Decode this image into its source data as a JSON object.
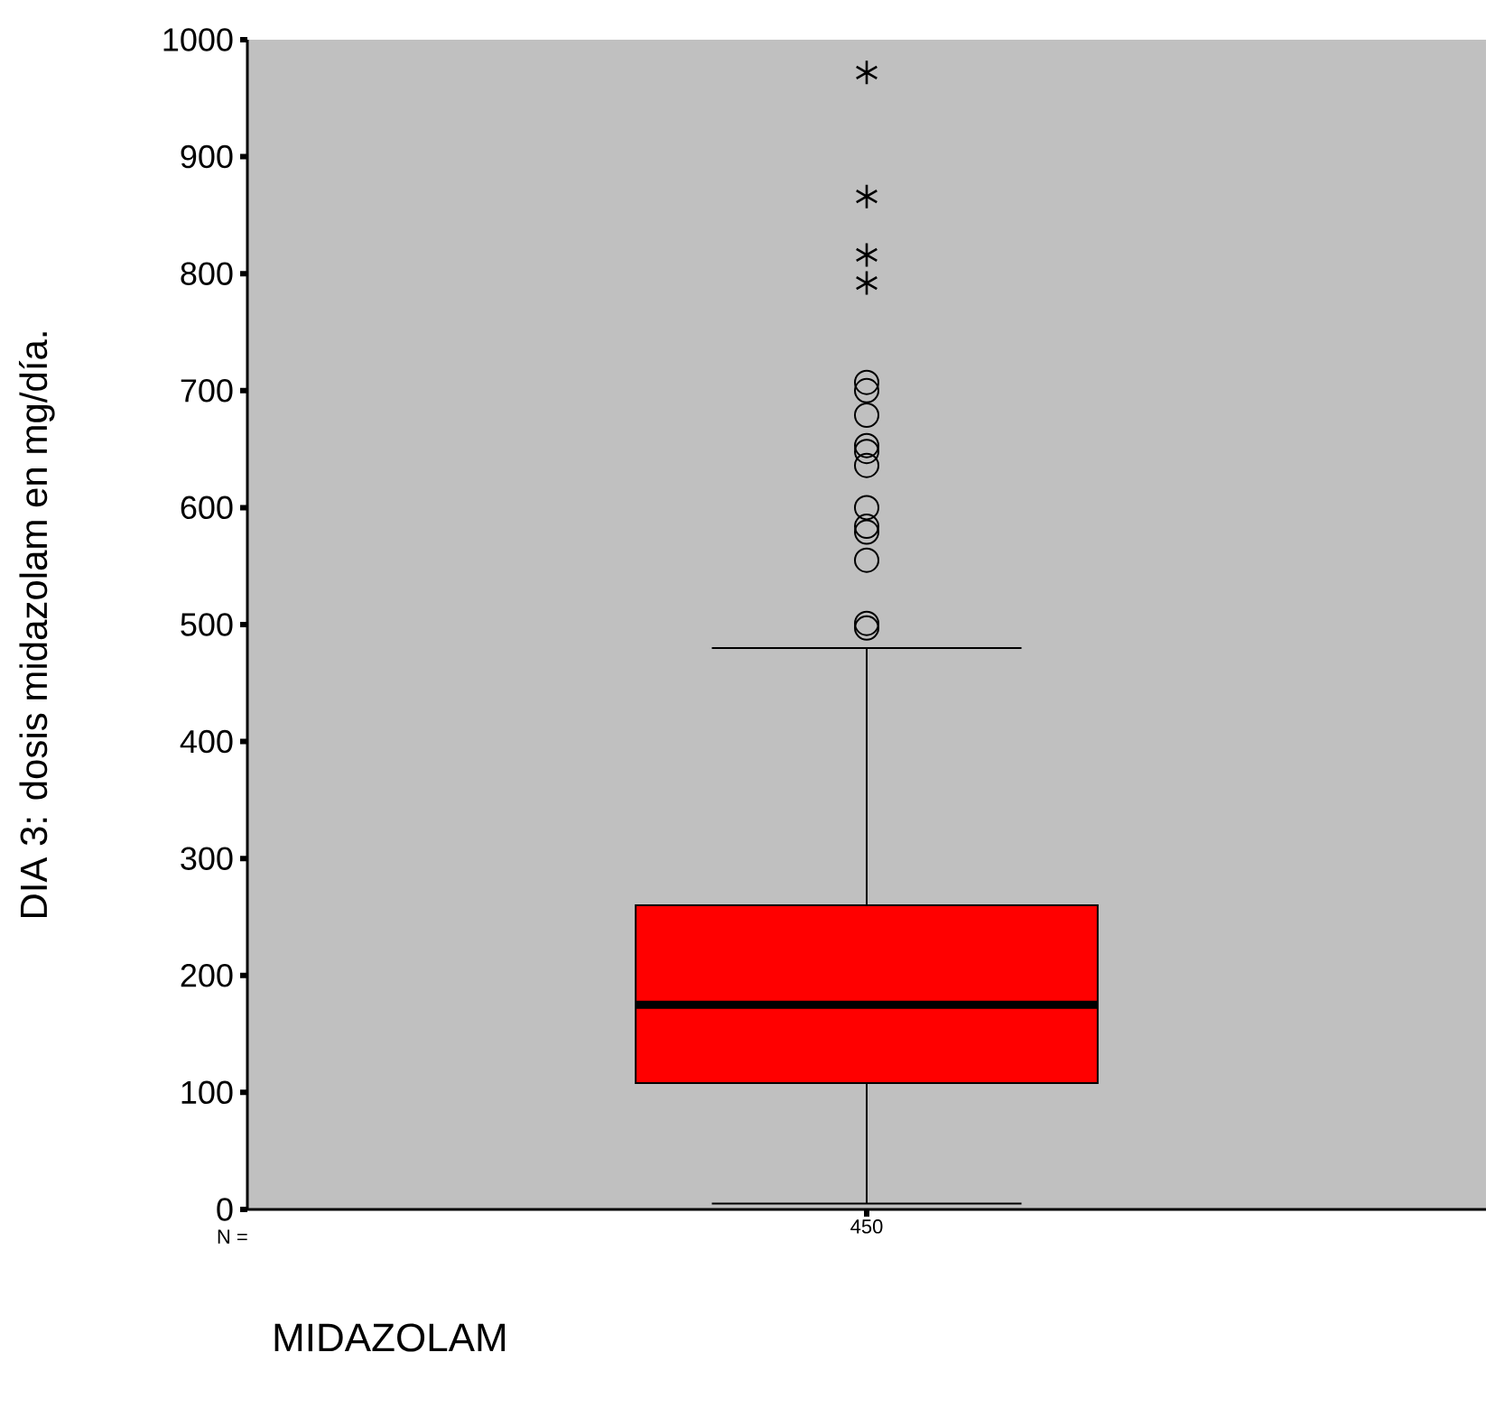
{
  "chart_data": {
    "type": "box",
    "xlabel": "MIDAZOLAM",
    "ylabel": "DIA 3: dosis midazolam en mg/día.",
    "annotations": [
      "N ="
    ],
    "categories": [
      "450"
    ],
    "ylim": [
      0,
      1000
    ],
    "yticks": [
      0,
      100,
      200,
      300,
      400,
      500,
      600,
      700,
      800,
      900,
      1000
    ],
    "series": [
      {
        "color": "#ff0000",
        "boxes": [
          {
            "low": 5,
            "q1": 108,
            "median": 175,
            "q3": 260,
            "high": 480,
            "outliers": [
              707,
              700,
              679,
              653,
              648,
              636,
              600,
              584,
              579,
              555,
              501,
              497
            ]
          }
        ]
      },
      {
        "type": "scatter",
        "marker": "cross",
        "color": "#000000",
        "x": [
          "450",
          "450",
          "450",
          "450"
        ],
        "values": [
          972,
          866,
          816,
          792
        ]
      }
    ]
  }
}
